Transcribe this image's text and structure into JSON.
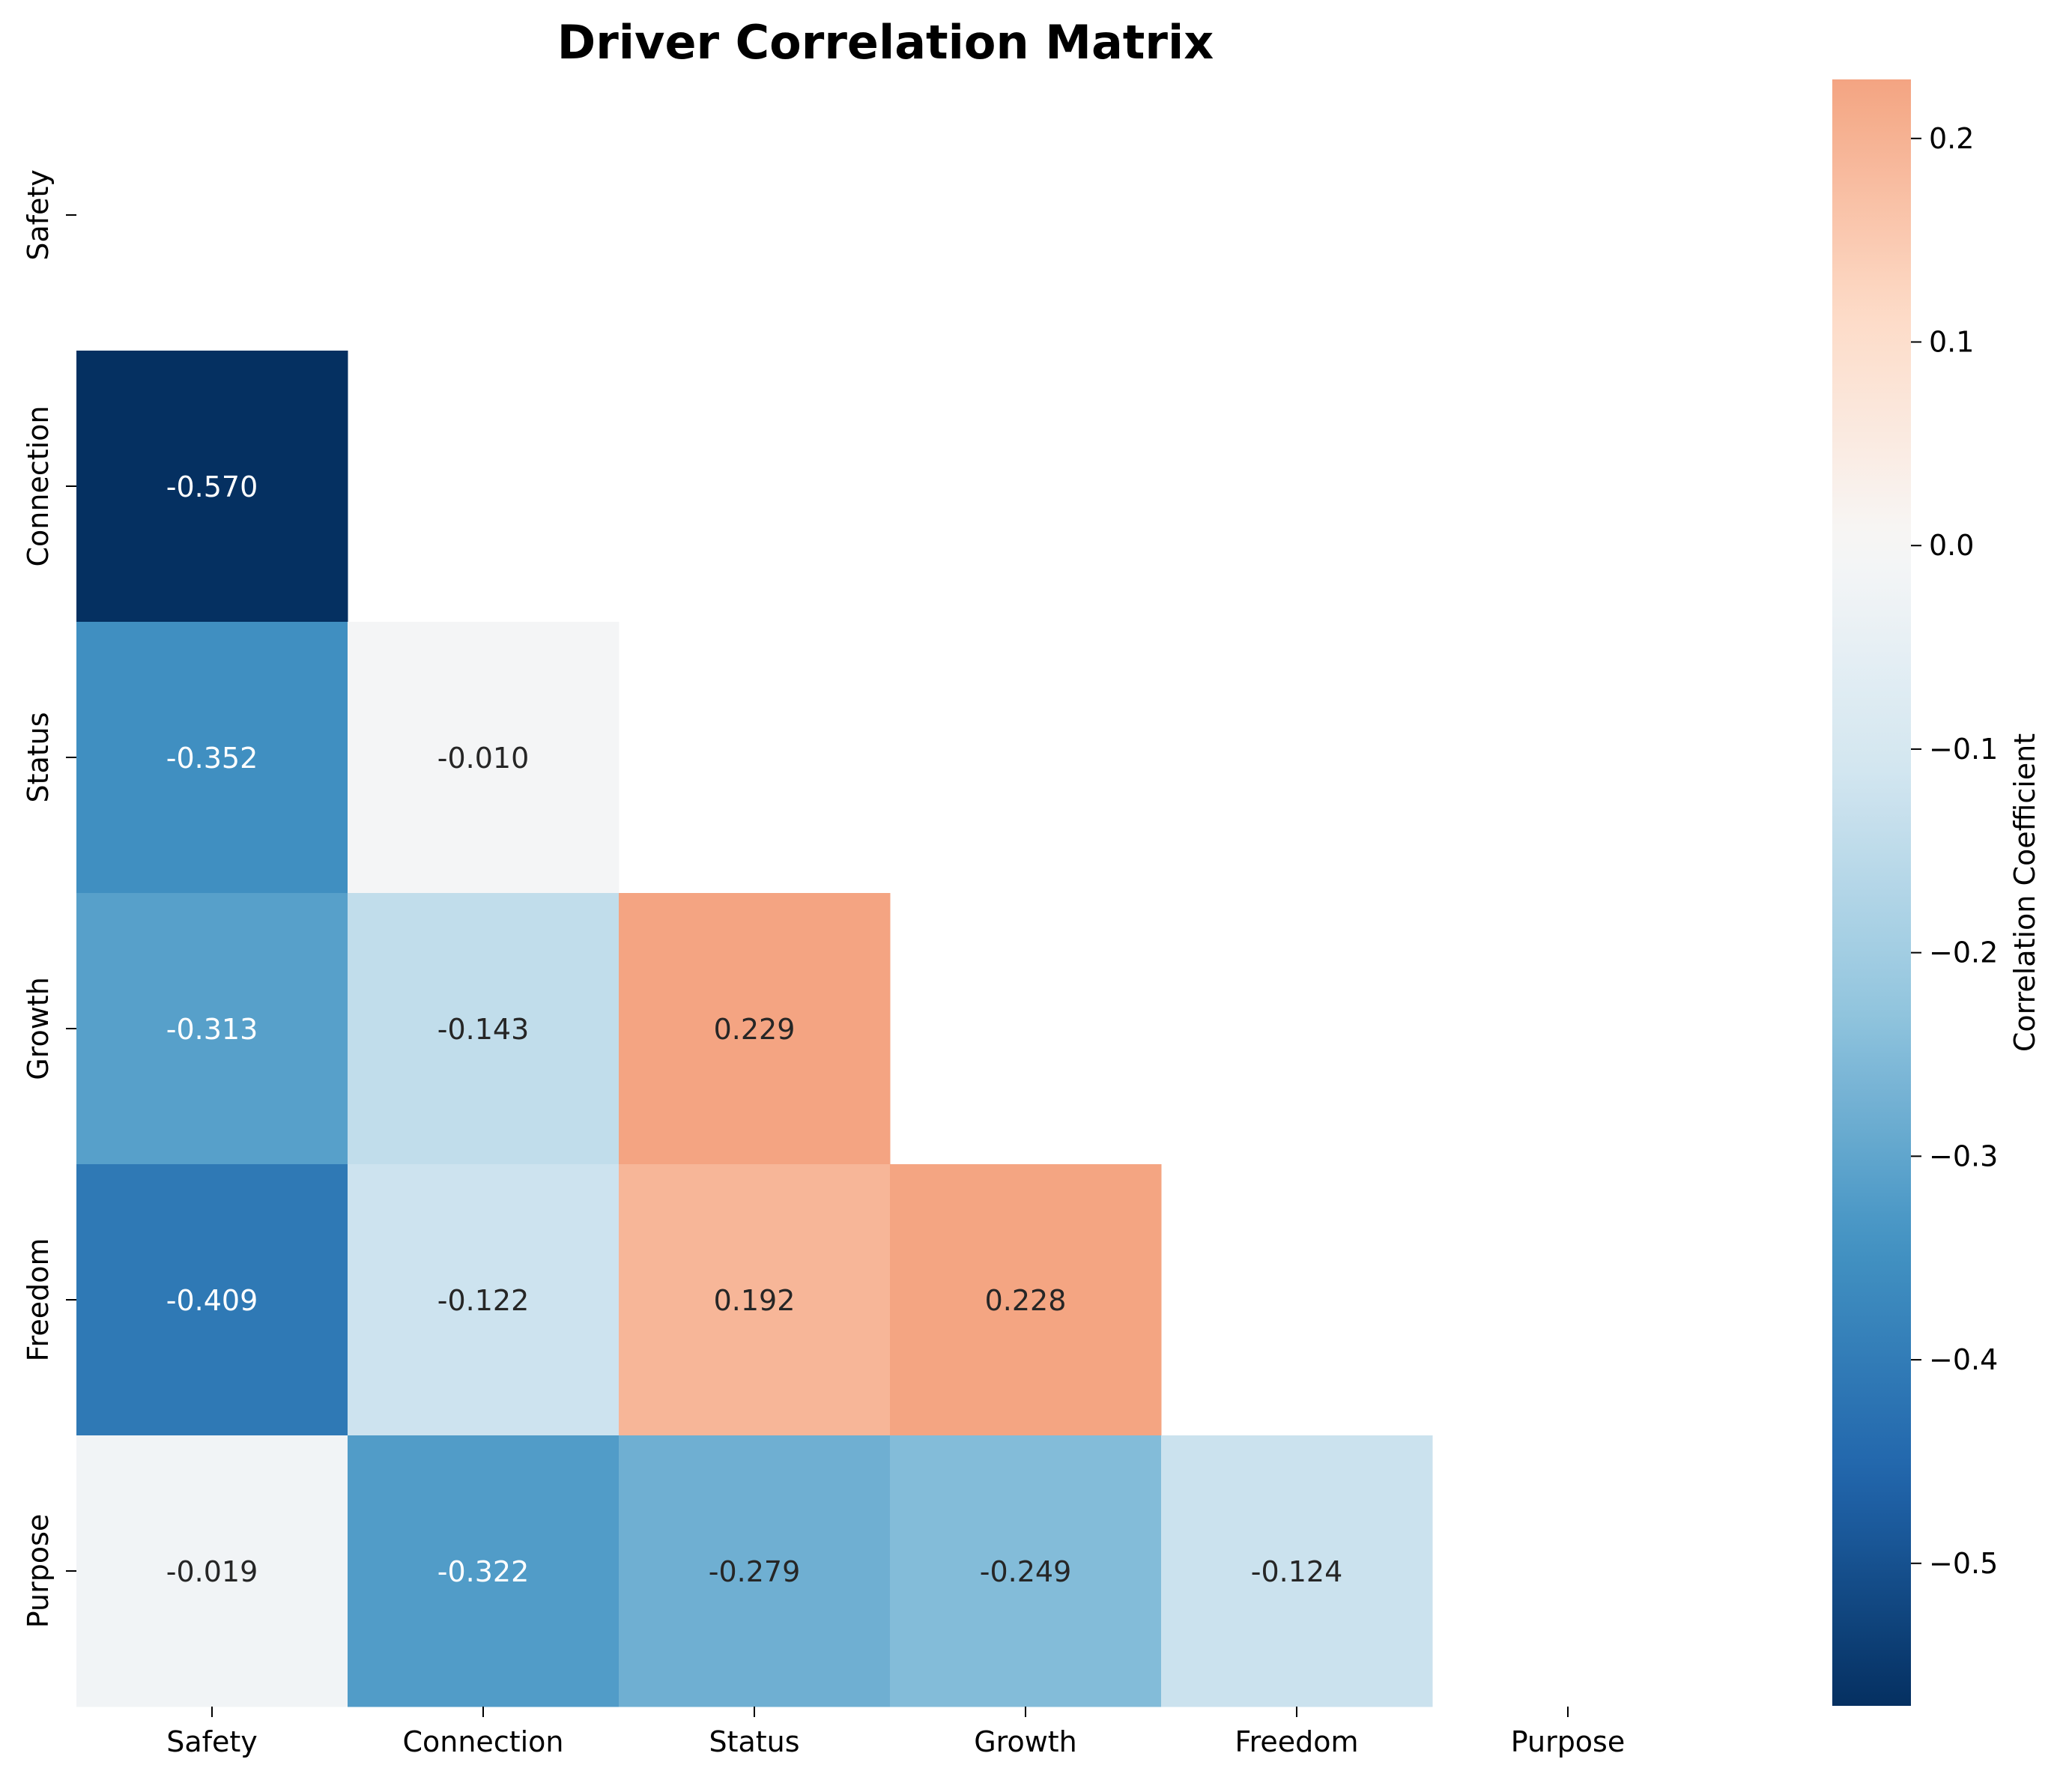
{
  "chart_data": {
    "type": "heatmap",
    "title": "Driver Correlation Matrix",
    "x_categories": [
      "Safety",
      "Connection",
      "Status",
      "Growth",
      "Freedom",
      "Purpose"
    ],
    "y_categories": [
      "Safety",
      "Connection",
      "Status",
      "Growth",
      "Freedom",
      "Purpose"
    ],
    "mask": "upper-triangle-including-diagonal",
    "cells": [
      {
        "row": "Connection",
        "col": "Safety",
        "value": -0.57,
        "label": "-0.570"
      },
      {
        "row": "Status",
        "col": "Safety",
        "value": -0.352,
        "label": "-0.352"
      },
      {
        "row": "Status",
        "col": "Connection",
        "value": -0.01,
        "label": "-0.010"
      },
      {
        "row": "Growth",
        "col": "Safety",
        "value": -0.313,
        "label": "-0.313"
      },
      {
        "row": "Growth",
        "col": "Connection",
        "value": -0.143,
        "label": "-0.143"
      },
      {
        "row": "Growth",
        "col": "Status",
        "value": 0.229,
        "label": "0.229"
      },
      {
        "row": "Freedom",
        "col": "Safety",
        "value": -0.409,
        "label": "-0.409"
      },
      {
        "row": "Freedom",
        "col": "Connection",
        "value": -0.122,
        "label": "-0.122"
      },
      {
        "row": "Freedom",
        "col": "Status",
        "value": 0.192,
        "label": "0.192"
      },
      {
        "row": "Freedom",
        "col": "Growth",
        "value": 0.228,
        "label": "0.228"
      },
      {
        "row": "Purpose",
        "col": "Safety",
        "value": -0.019,
        "label": "-0.019"
      },
      {
        "row": "Purpose",
        "col": "Connection",
        "value": -0.322,
        "label": "-0.322"
      },
      {
        "row": "Purpose",
        "col": "Status",
        "value": -0.279,
        "label": "-0.279"
      },
      {
        "row": "Purpose",
        "col": "Growth",
        "value": -0.249,
        "label": "-0.249"
      },
      {
        "row": "Purpose",
        "col": "Freedom",
        "value": -0.124,
        "label": "-0.124"
      }
    ],
    "colorbar": {
      "label": "Correlation Coefficient",
      "vmin": -0.57,
      "vmax": 0.229,
      "colormap": "RdBu_r",
      "ticks": [
        0.2,
        0.1,
        0.0,
        -0.1,
        -0.2,
        -0.3,
        -0.4,
        -0.5
      ],
      "tick_labels": [
        "0.2",
        "0.1",
        "0.0",
        "−0.1",
        "−0.2",
        "−0.3",
        "−0.4",
        "−0.5"
      ]
    }
  }
}
